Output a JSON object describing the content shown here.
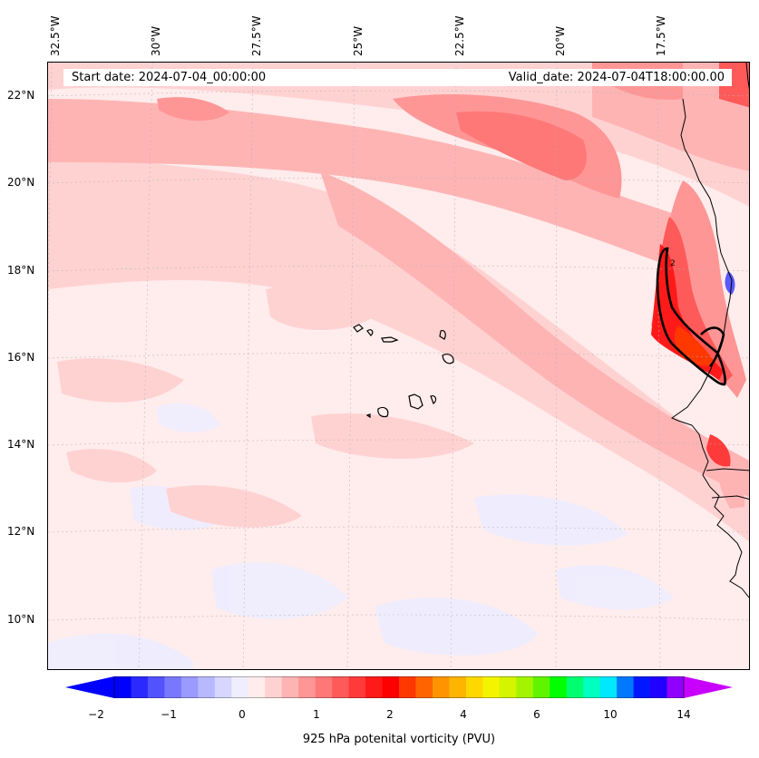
{
  "header": {
    "start_date": "Start date: 2024-07-04_00:00:00",
    "valid_date": "Valid_date: 2024-07-04T18:00:00.00"
  },
  "longitude_labels": [
    "32.5°W",
    "30°W",
    "27.5°W",
    "25°W",
    "22.5°W",
    "20°W",
    "17.5°W"
  ],
  "latitude_labels": [
    "22°N",
    "20°N",
    "18°N",
    "16°N",
    "14°N",
    "12°N",
    "10°N"
  ],
  "colorbar": {
    "title": "925 hPa potenital vorticity (PVU)",
    "tick_labels": [
      "−2",
      "−1",
      "0",
      "1",
      "2",
      "4",
      "6",
      "10",
      "14"
    ],
    "colors": [
      "#0000ff",
      "#2a2aff",
      "#5252ff",
      "#7878ff",
      "#9a9aff",
      "#b8b8ff",
      "#d6d6ff",
      "#eeeeff",
      "#ffecec",
      "#ffd2d2",
      "#ffb4b4",
      "#ff9696",
      "#ff7878",
      "#ff5a5a",
      "#ff3a3a",
      "#ff1a1a",
      "#ff0000",
      "#ff3800",
      "#ff6400",
      "#ff9400",
      "#ffb400",
      "#ffd800",
      "#f4f400",
      "#d4f400",
      "#a4f400",
      "#60f400",
      "#00ff00",
      "#00ff70",
      "#00ffc0",
      "#00e8ff",
      "#0078ff",
      "#0018ff",
      "#2000ff",
      "#9000ff"
    ],
    "extend_min_color": "#0000ff",
    "extend_max_color": "#c800ff"
  },
  "map": {
    "background_color": "#ffecec",
    "contour_label": "2"
  }
}
